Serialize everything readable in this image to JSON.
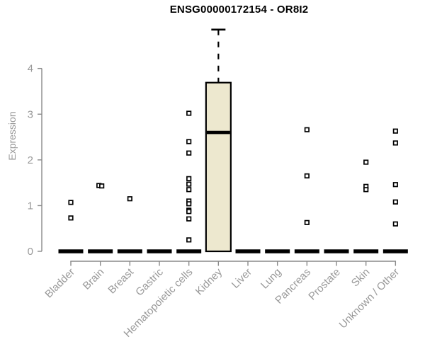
{
  "chart_data": {
    "type": "boxplot",
    "title": "ENSG00000172154 - OR8I2",
    "ylabel": "Expression",
    "xlabel": "",
    "ylim": [
      0,
      4.9
    ],
    "y_ticks": [
      0,
      1,
      2,
      3,
      4
    ],
    "grid": false,
    "legend": null,
    "categories": [
      "Bladder",
      "Brain",
      "Breast",
      "Gastric",
      "Hematopoietic cells",
      "Kidney",
      "Liver",
      "Lung",
      "Pancreas",
      "Prostate",
      "Skin",
      "Unknown / Other"
    ],
    "boxes": [
      {
        "category": "Bladder",
        "q1": 0,
        "median": 0,
        "q3": 0,
        "whisker_low": 0,
        "whisker_high": 0,
        "outliers": [
          1.07,
          0.73
        ]
      },
      {
        "category": "Brain",
        "q1": 0,
        "median": 0,
        "q3": 0,
        "whisker_low": 0,
        "whisker_high": 0,
        "outliers": [
          [
            1.44,
            -2
          ],
          [
            1.43,
            2
          ]
        ]
      },
      {
        "category": "Breast",
        "q1": 0,
        "median": 0,
        "q3": 0,
        "whisker_low": 0,
        "whisker_high": 0,
        "outliers": [
          1.15
        ]
      },
      {
        "category": "Gastric",
        "q1": 0,
        "median": 0,
        "q3": 0,
        "whisker_low": 0,
        "whisker_high": 0,
        "outliers": []
      },
      {
        "category": "Hematopoietic cells",
        "q1": 0,
        "median": 0,
        "q3": 0,
        "whisker_low": 0,
        "whisker_high": 0,
        "outliers": [
          3.02,
          2.4,
          2.15,
          1.59,
          1.47,
          1.35,
          1.1,
          1.04,
          0.9,
          0.87,
          0.71,
          0.25
        ]
      },
      {
        "category": "Kidney",
        "q1": 0,
        "median": 2.6,
        "q3": 3.69,
        "whisker_low": 0,
        "whisker_high": 4.85,
        "outliers": []
      },
      {
        "category": "Liver",
        "q1": 0,
        "median": 0,
        "q3": 0,
        "whisker_low": 0,
        "whisker_high": 0,
        "outliers": []
      },
      {
        "category": "Lung",
        "q1": 0,
        "median": 0,
        "q3": 0,
        "whisker_low": 0,
        "whisker_high": 0,
        "outliers": []
      },
      {
        "category": "Pancreas",
        "q1": 0,
        "median": 0,
        "q3": 0,
        "whisker_low": 0,
        "whisker_high": 0,
        "outliers": [
          2.66,
          1.65,
          0.63
        ]
      },
      {
        "category": "Prostate",
        "q1": 0,
        "median": 0,
        "q3": 0,
        "whisker_low": 0,
        "whisker_high": 0,
        "outliers": []
      },
      {
        "category": "Skin",
        "q1": 0,
        "median": 0,
        "q3": 0,
        "whisker_low": 0,
        "whisker_high": 0,
        "outliers": [
          1.95,
          1.42,
          1.35
        ]
      },
      {
        "category": "Unknown / Other",
        "q1": 0,
        "median": 0,
        "q3": 0,
        "whisker_low": 0,
        "whisker_high": 0,
        "outliers": [
          2.63,
          2.37,
          1.46,
          1.08,
          0.6
        ]
      }
    ],
    "colors": {
      "box_fill": "#EDE8CF",
      "box_stroke": "#000000",
      "median": "#000000",
      "collapsed_bar": "#000000",
      "point_stroke": "#000000",
      "point_fill": "#ffffff",
      "axis_line": "#8a8a8a",
      "axis_text": "#999999",
      "title_text": "#000000",
      "background": "#ffffff"
    }
  }
}
